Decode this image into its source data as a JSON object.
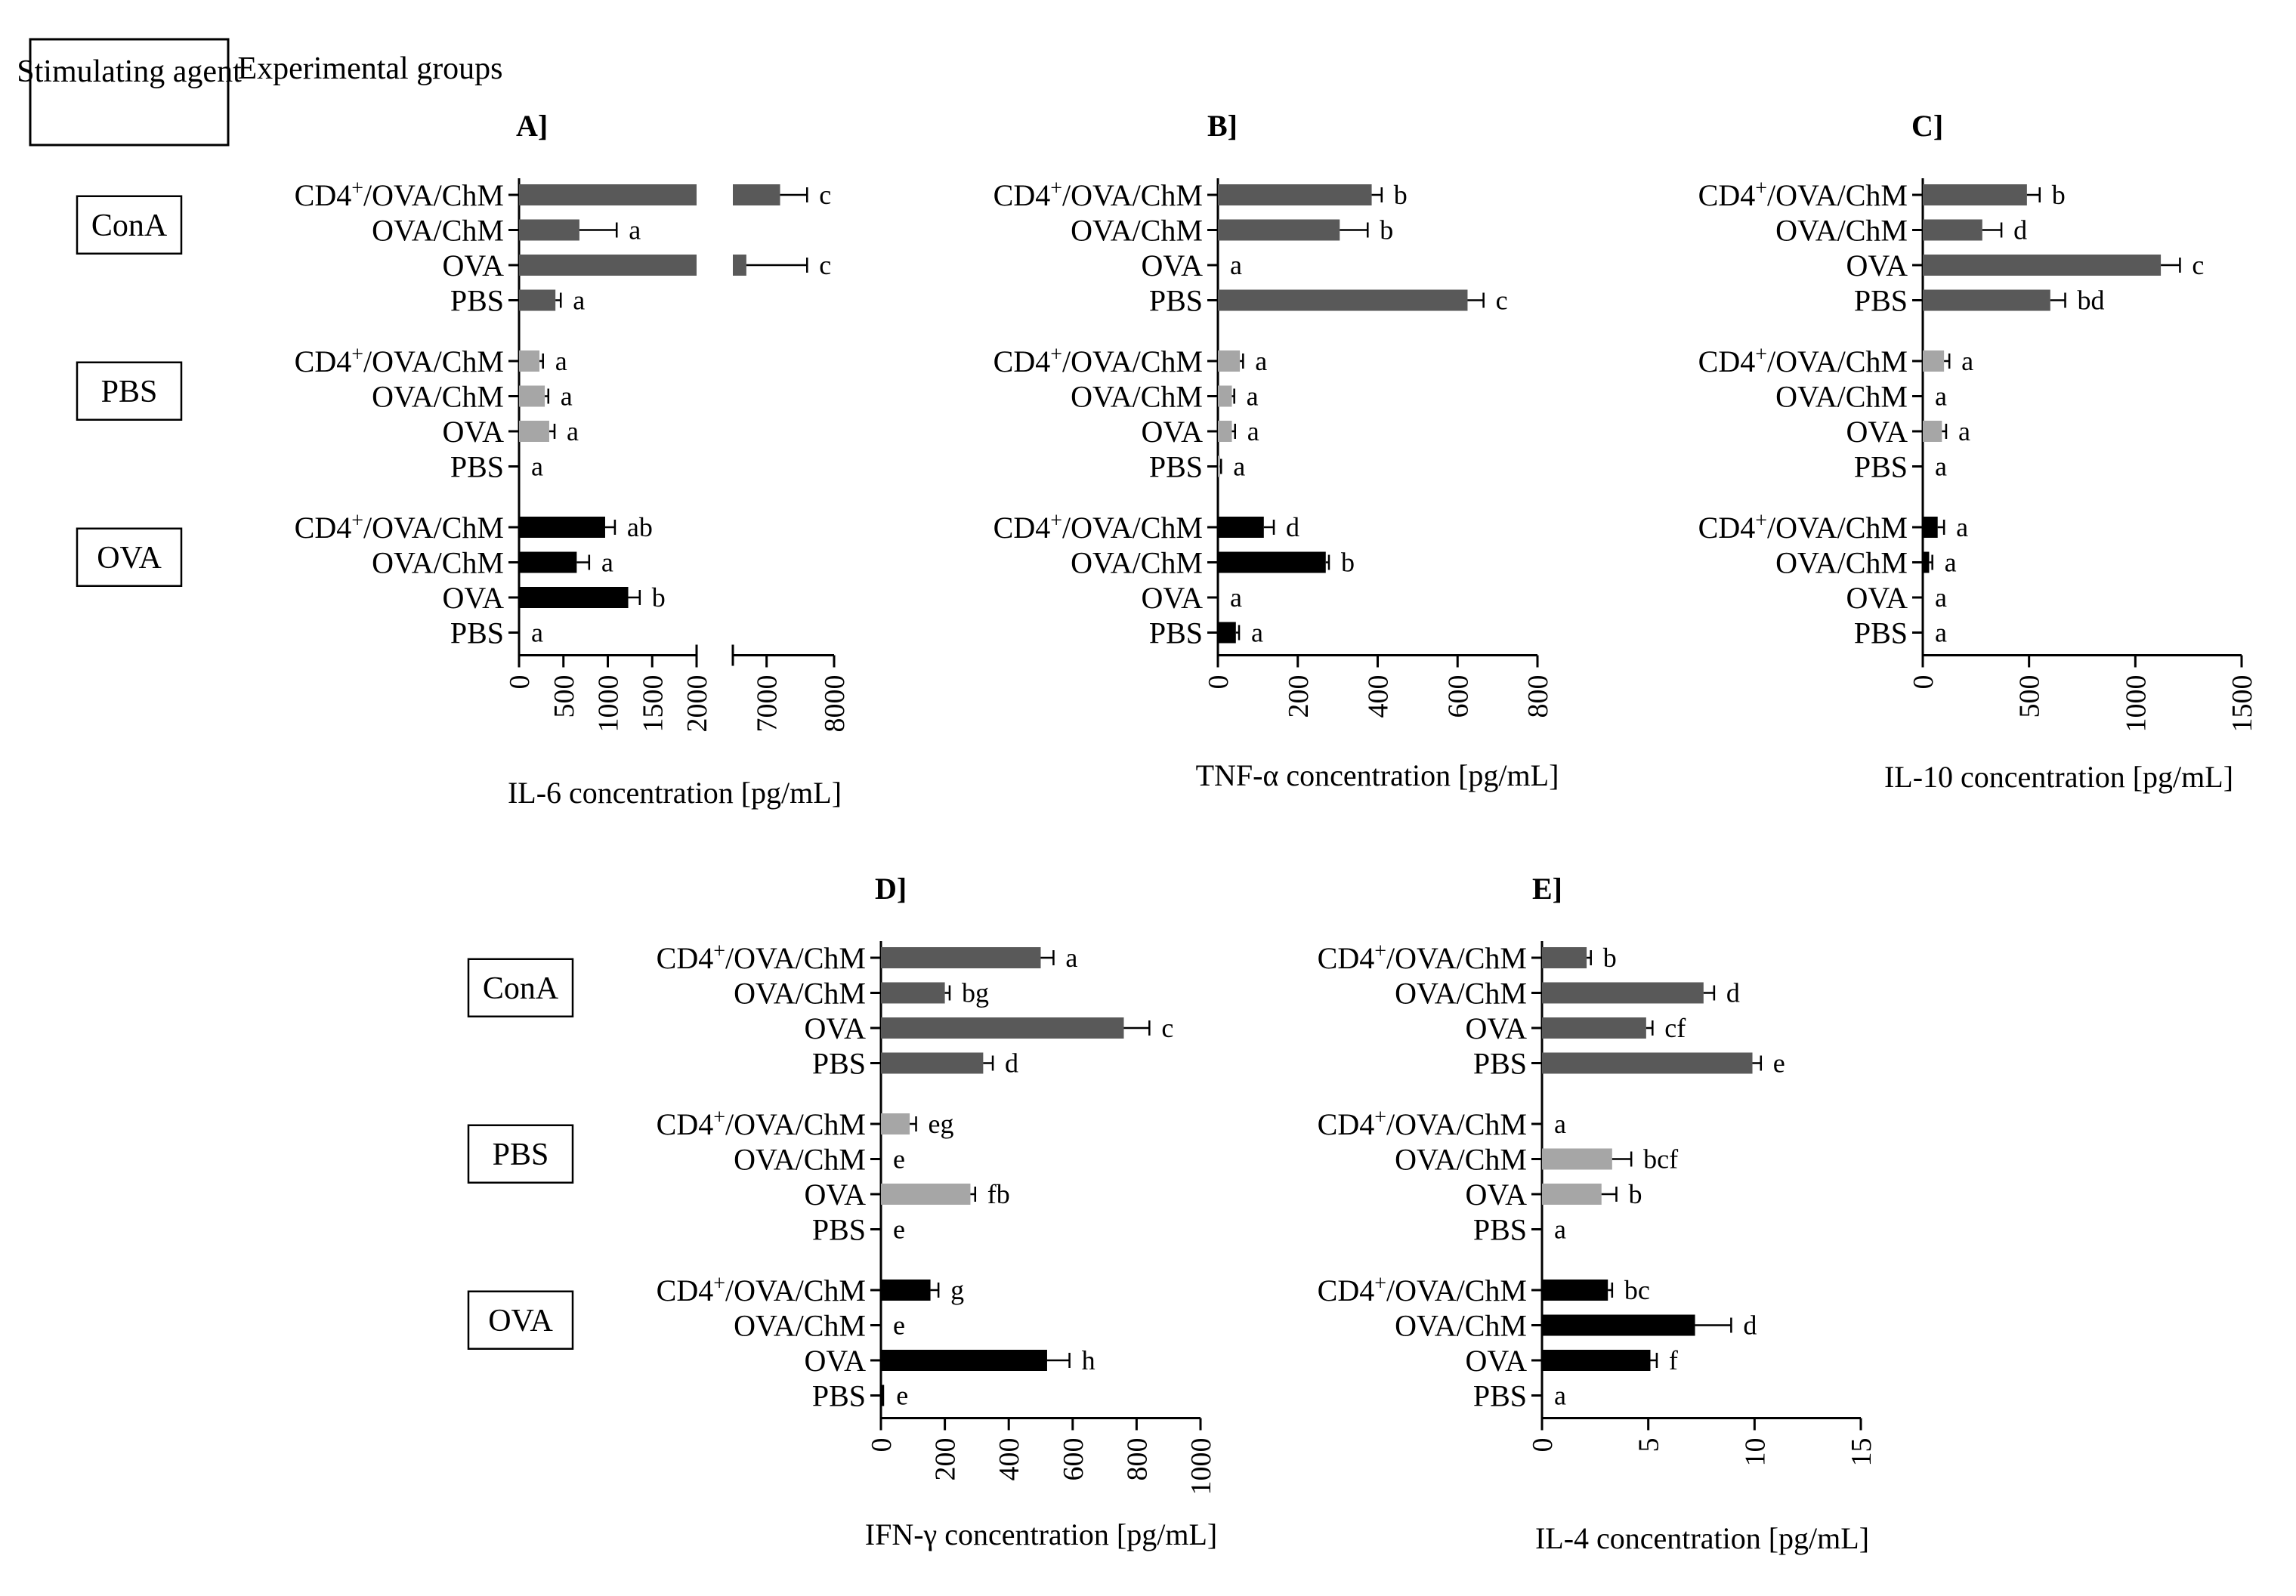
{
  "header": {
    "stimulating_agent": "Stimulating agent",
    "experimental_groups": "Experimental groups"
  },
  "row_labels": [
    "CD4+/OVA/ChM",
    "OVA/ChM",
    "OVA",
    "PBS"
  ],
  "agents": [
    "ConA",
    "PBS",
    "OVA"
  ],
  "colors": {
    "ConA": "#595959",
    "PBS": "#a6a6a6",
    "OVA": "#000000"
  },
  "chart_data": [
    {
      "type": "bar",
      "orientation": "horizontal",
      "panel": "A]",
      "xlabel": "IL-6 concentration [pg/mL]",
      "axis_break": {
        "from": 2000,
        "to": 6500
      },
      "ticks": [
        0,
        500,
        1000,
        1500,
        2000,
        7000,
        8000
      ],
      "xlim": [
        0,
        8000
      ],
      "groups": [
        {
          "agent": "ConA",
          "values": [
            7200,
            680,
            6700,
            410
          ],
          "errors": [
            400,
            420,
            900,
            60
          ],
          "letters": [
            "c",
            "a",
            "c",
            "a"
          ]
        },
        {
          "agent": "PBS",
          "values": [
            230,
            290,
            340,
            0
          ],
          "errors": [
            40,
            40,
            60,
            0
          ],
          "letters": [
            "a",
            "a",
            "a",
            "a"
          ]
        },
        {
          "agent": "OVA",
          "values": [
            970,
            650,
            1230,
            0
          ],
          "errors": [
            110,
            140,
            130,
            0
          ],
          "letters": [
            "ab",
            "a",
            "b",
            "a"
          ]
        }
      ]
    },
    {
      "type": "bar",
      "orientation": "horizontal",
      "panel": "B]",
      "xlabel": "TNF-α concentration [pg/mL]",
      "ticks": [
        0,
        200,
        400,
        600,
        800
      ],
      "xlim": [
        0,
        800
      ],
      "groups": [
        {
          "agent": "ConA",
          "values": [
            385,
            305,
            0,
            625
          ],
          "errors": [
            25,
            70,
            0,
            40
          ],
          "letters": [
            "b",
            "b",
            "a",
            "c"
          ]
        },
        {
          "agent": "PBS",
          "values": [
            55,
            35,
            35,
            5
          ],
          "errors": [
            8,
            6,
            8,
            3
          ],
          "letters": [
            "a",
            "a",
            "a",
            "a"
          ]
        },
        {
          "agent": "OVA",
          "values": [
            115,
            270,
            0,
            45
          ],
          "errors": [
            25,
            8,
            0,
            8
          ],
          "letters": [
            "d",
            "b",
            "a",
            "a"
          ]
        }
      ]
    },
    {
      "type": "bar",
      "orientation": "horizontal",
      "panel": "C]",
      "xlabel": "IL-10 concentration [pg/mL]",
      "ticks": [
        0,
        500,
        1000,
        1500
      ],
      "xlim": [
        0,
        1500
      ],
      "groups": [
        {
          "agent": "ConA",
          "values": [
            490,
            280,
            1120,
            600
          ],
          "errors": [
            60,
            90,
            90,
            70
          ],
          "letters": [
            "b",
            "d",
            "c",
            "bd"
          ]
        },
        {
          "agent": "PBS",
          "values": [
            100,
            0,
            90,
            0
          ],
          "errors": [
            25,
            0,
            20,
            0
          ],
          "letters": [
            "a",
            "a",
            "a",
            "a"
          ]
        },
        {
          "agent": "OVA",
          "values": [
            70,
            30,
            0,
            0
          ],
          "errors": [
            30,
            15,
            0,
            0
          ],
          "letters": [
            "a",
            "a",
            "a",
            "a"
          ]
        }
      ]
    },
    {
      "type": "bar",
      "orientation": "horizontal",
      "panel": "D]",
      "xlabel": "IFN-γ concentration [pg/mL]",
      "ticks": [
        0,
        200,
        400,
        600,
        800,
        1000
      ],
      "xlim": [
        0,
        1000
      ],
      "groups": [
        {
          "agent": "ConA",
          "values": [
            500,
            200,
            760,
            320
          ],
          "errors": [
            40,
            15,
            80,
            30
          ],
          "letters": [
            "a",
            "bg",
            "c",
            "d"
          ]
        },
        {
          "agent": "PBS",
          "values": [
            90,
            0,
            280,
            0
          ],
          "errors": [
            20,
            0,
            15,
            0
          ],
          "letters": [
            "eg",
            "e",
            "fb",
            "e"
          ]
        },
        {
          "agent": "OVA",
          "values": [
            155,
            0,
            520,
            10
          ],
          "errors": [
            25,
            0,
            70,
            0
          ],
          "letters": [
            "g",
            "e",
            "h",
            "e"
          ]
        }
      ]
    },
    {
      "type": "bar",
      "orientation": "horizontal",
      "panel": "E]",
      "xlabel": "IL-4 concentration [pg/mL]",
      "ticks": [
        0,
        5,
        10,
        15
      ],
      "xlim": [
        0,
        15
      ],
      "groups": [
        {
          "agent": "ConA",
          "values": [
            2.1,
            7.6,
            4.9,
            9.9
          ],
          "errors": [
            0.2,
            0.5,
            0.3,
            0.4
          ],
          "letters": [
            "b",
            "d",
            "cf",
            "e"
          ]
        },
        {
          "agent": "PBS",
          "values": [
            0,
            3.3,
            2.8,
            0
          ],
          "errors": [
            0,
            0.9,
            0.7,
            0
          ],
          "letters": [
            "a",
            "bcf",
            "b",
            "a"
          ]
        },
        {
          "agent": "OVA",
          "values": [
            3.1,
            7.2,
            5.1,
            0
          ],
          "errors": [
            0.2,
            1.7,
            0.3,
            0
          ],
          "letters": [
            "bc",
            "d",
            "f",
            "a"
          ]
        }
      ]
    }
  ]
}
